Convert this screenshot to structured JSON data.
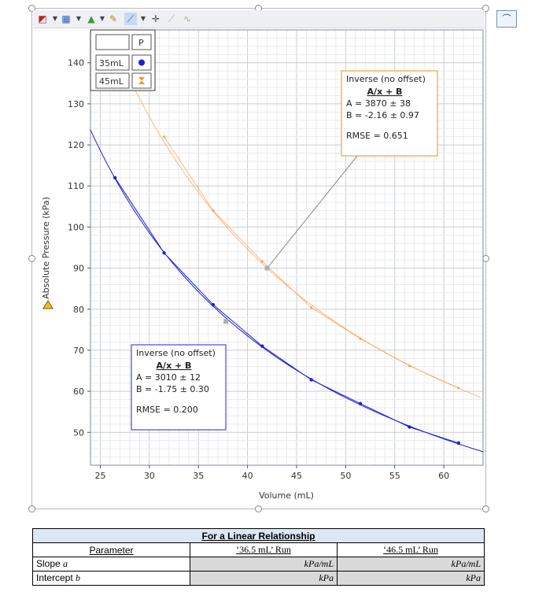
{
  "toolbar": {
    "icons": [
      "graph-options-icon",
      "data-table-icon",
      "color-icon",
      "analyze-icon",
      "curve-fit-icon",
      "examine-icon",
      "tangent-icon",
      "integral-icon"
    ],
    "right_icon": "lab-icon"
  },
  "chart_data": {
    "type": "scatter",
    "xlabel": "Volume (mL)",
    "ylabel": "Absolute Pressure (kPa)",
    "xlim": [
      24,
      64
    ],
    "ylim": [
      42,
      148
    ],
    "x_ticks": [
      25,
      30,
      35,
      40,
      45,
      50,
      55,
      60
    ],
    "y_ticks": [
      50,
      60,
      70,
      80,
      90,
      100,
      110,
      120,
      130,
      140
    ],
    "grid": true,
    "legend": {
      "placement": "top-left",
      "header": "P",
      "entries": [
        "35mL",
        "45mL"
      ]
    },
    "series": [
      {
        "name": "35mL",
        "color": "#1f1fd6",
        "marker": "circle",
        "x": [
          26.5,
          31.5,
          36.5,
          41.5,
          46.5,
          51.5,
          56.5,
          61.5
        ],
        "y": [
          112,
          93.7,
          81.1,
          71.0,
          62.8,
          57.0,
          51.3,
          47.4
        ],
        "fit": {
          "A": 3010,
          "B": -1.75
        }
      },
      {
        "name": "45mL",
        "color": "#ffa24d",
        "marker": "diamond",
        "x": [
          31.5,
          36.5,
          41.5,
          46.5,
          51.5,
          56.5,
          61.5
        ],
        "y": [
          122,
          104,
          91.6,
          80.4,
          72.8,
          66.2,
          60.8
        ],
        "fit": {
          "A": 3870,
          "B": -2.16
        }
      }
    ],
    "annotations": [
      {
        "series": "45mL",
        "lines": [
          "Inverse (no offset)",
          "A/x + B",
          "A = 3870 ± 38",
          "B = -2.16 ± 0.97",
          "RMSE = 0.651"
        ],
        "border": "#f5a040",
        "pointer_x": 42.0,
        "pointer_y": 90.0
      },
      {
        "series": "35mL",
        "lines": [
          "Inverse (no offset)",
          "A/x + B",
          "A = 3010 ± 12",
          "B = -1.75 ± 0.30",
          "RMSE = 0.200"
        ],
        "border": "#4848d8",
        "pointer_x": 37.8,
        "pointer_y": 77.0
      }
    ]
  },
  "table": {
    "title": "For a Linear Relationship",
    "headers": [
      "Parameter",
      "‘36.5 mL’ Run",
      "‘46.5 mL’ Run"
    ],
    "rows": [
      {
        "label": "Slope",
        "var": "a",
        "units": [
          "kPa/mL",
          "kPa/mL"
        ]
      },
      {
        "label": "Intercept",
        "var": "b",
        "units": [
          "kPa",
          "kPa"
        ]
      }
    ]
  }
}
